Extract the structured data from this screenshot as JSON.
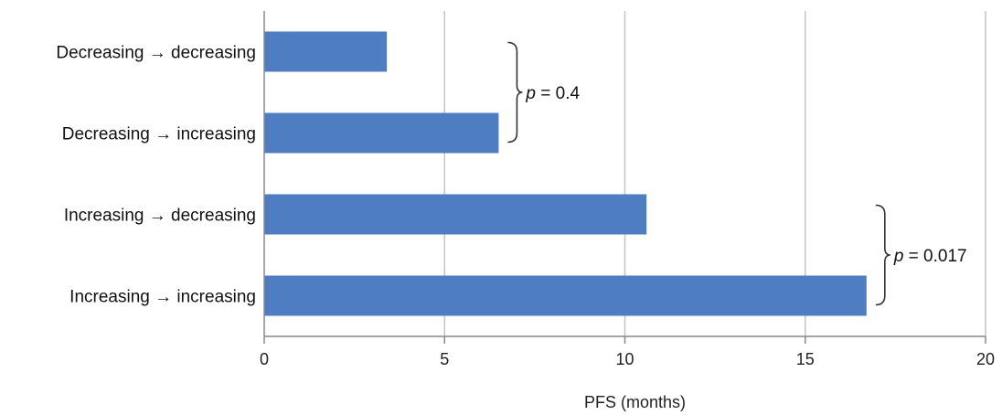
{
  "chart_data": {
    "type": "bar",
    "orientation": "horizontal",
    "categories": [
      "Decreasing → decreasing",
      "Decreasing → increasing",
      "Increasing → decreasing",
      "Increasing → increasing"
    ],
    "values": [
      3.4,
      6.5,
      10.6,
      16.7
    ],
    "xlabel": "PFS (months)",
    "xlim": [
      0,
      20
    ],
    "xticks": [
      0,
      5,
      10,
      15,
      20
    ],
    "grid": "vertical",
    "bar_color": "#4F7DC1",
    "annotations": [
      {
        "between": [
          "Decreasing → decreasing",
          "Decreasing → increasing"
        ],
        "label_prefix": "p",
        "label_value": " = 0.4"
      },
      {
        "between": [
          "Increasing → decreasing",
          "Increasing → increasing"
        ],
        "label_prefix": "p",
        "label_value": " = 0.017"
      }
    ]
  }
}
